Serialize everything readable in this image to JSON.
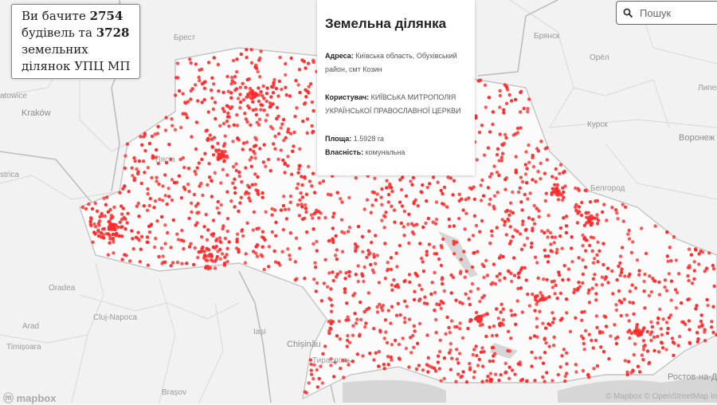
{
  "counter": {
    "prefix": "Ви бачите",
    "buildings_count": "2754",
    "middle": "будівель та",
    "plots_count": "3728",
    "suffix": "земельних ділянок УПЦ МП"
  },
  "popup": {
    "title": "Земельна ділянка",
    "address_label": "Адреса:",
    "address_value": "Київська область, Обухівський район, смт Козин",
    "user_label": "Користувач:",
    "user_value": "КИЇВСЬКА МИТРОПОЛІЯ УКРАЇНСЬКОЇ ПРАВОСЛАВНОЇ ЦЕРКВИ",
    "area_label": "Площа:",
    "area_value": "1.5928 га",
    "ownership_label": "Власність:",
    "ownership_value": "комунальна"
  },
  "search": {
    "placeholder": "Пошук",
    "icon": "search-icon"
  },
  "map_labels": {
    "brest": "Брест",
    "bryansk": "Брянск",
    "orel": "Орёл",
    "lipetsk": "Липец",
    "kursk": "Курск",
    "voronezh": "Воронеж",
    "belgorod": "Белгород",
    "katowice": "atowice",
    "krakow": "Kraków",
    "lesko": "Лясіа",
    "bistrica": "strica",
    "oradea": "Oradea",
    "arad": "Arad",
    "timisoara": "Timișoara",
    "cluj": "Cluj-Napoca",
    "iasi": "Iași",
    "chisinau": "Chișinău",
    "tiraspol": "Тирасполь",
    "brasov": "Brașov",
    "rostov": "Ростов-на-Дону"
  },
  "attribution": {
    "logo": "mapbox",
    "text": "© Mapbox © OpenStreetMap Im"
  },
  "colors": {
    "dot": "#ff2a2a",
    "ukraine_fill": "#fbfbfb",
    "land": "#f2f2f2",
    "water": "#d6d6d6",
    "border": "#c4c4c4"
  }
}
